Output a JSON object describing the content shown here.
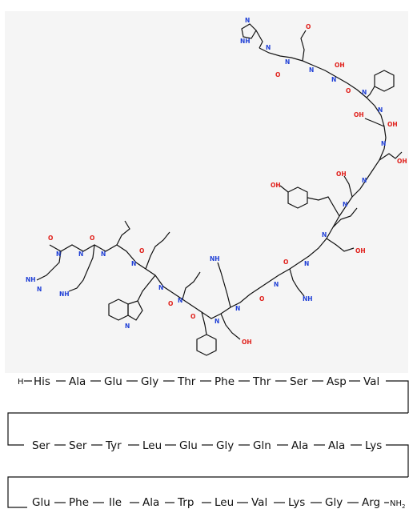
{
  "sequence": {
    "rows": [
      {
        "start_terminus": "H",
        "residues": [
          "His",
          "Ala",
          "Glu",
          "Gly",
          "Thr",
          "Phe",
          "Thr",
          "Ser",
          "Asp",
          "Val"
        ]
      },
      {
        "residues": [
          "Ser",
          "Ser",
          "Tyr",
          "Leu",
          "Glu",
          "Gly",
          "Gln",
          "Ala",
          "Ala",
          "Lys"
        ]
      },
      {
        "residues": [
          "Glu",
          "Phe",
          "Ile",
          "Ala",
          "Trp",
          "Leu",
          "Val",
          "Lys",
          "Gly",
          "Arg"
        ],
        "end_terminus": "NH",
        "end_terminus_subscript": "2"
      }
    ]
  },
  "structure_labels": {
    "nitrogen": "N",
    "hydrogen": "H",
    "oxygen": "O",
    "hydroxyl": "OH",
    "amine": "NH",
    "amine2_sub": "2",
    "colors": {
      "nitrogen": "#1f3fd6",
      "oxygen": "#e0201b"
    }
  }
}
